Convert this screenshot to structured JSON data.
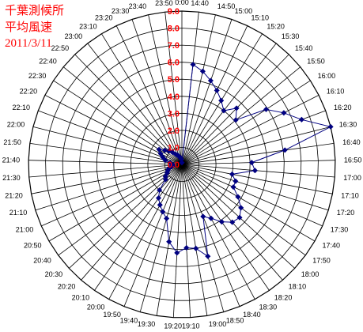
{
  "chart_data": {
    "type": "radar",
    "title_lines": [
      "千葉測候所",
      "平均風速",
      "2011/3/11"
    ],
    "radial_ticks": [
      "0.0",
      "1.0",
      "2.0",
      "3.0",
      "4.0",
      "5.0",
      "6.0",
      "7.0",
      "8.0",
      "9.0"
    ],
    "rmax": 9.0,
    "categories": [
      "0:00",
      "14:40",
      "14:50",
      "15:00",
      "15:10",
      "15:20",
      "15:30",
      "15:40",
      "15:50",
      "16:00",
      "16:10",
      "16:20",
      "16:30",
      "16:40",
      "16:50",
      "17:00",
      "17:10",
      "17:20",
      "17:30",
      "17:40",
      "17:50",
      "18:00",
      "18:10",
      "18:20",
      "18:30",
      "18:40",
      "18:50",
      "19:00",
      "19:10",
      "19:20",
      "19:30",
      "19:40",
      "19:50",
      "20:00",
      "20:10",
      "20:20",
      "20:30",
      "20:40",
      "20:50",
      "21:00",
      "21:10",
      "21:20",
      "21:30",
      "21:40",
      "21:50",
      "22:00",
      "22:10",
      "22:20",
      "22:30",
      "22:40",
      "22:50",
      "23:00",
      "23:10",
      "23:20",
      "23:30",
      "23:40",
      "23:50"
    ],
    "series": [
      {
        "color": "#000080",
        "values": [
          0.1,
          5.9,
          5.6,
          5.2,
          4.8,
          4.4,
          4.0,
          4.6,
          4.1,
          5.9,
          6.7,
          7.5,
          9.0,
          6.1,
          4.1,
          4.3,
          3.0,
          3.3,
          3.3,
          3.8,
          4.3,
          4.6,
          4.5,
          4.1,
          3.6,
          3.3,
          5.6,
          5.0,
          4.9,
          5.2,
          4.6,
          3.3,
          3.0,
          2.7,
          2.4,
          2.0,
          1.3,
          1.2,
          1.0,
          0.9,
          0.8,
          0.6,
          0.5,
          0.6,
          0.7,
          1.0,
          1.2,
          1.4,
          1.6,
          1.3,
          1.1,
          0.9,
          0.7,
          0.6,
          0.5,
          0.4,
          0.3
        ]
      }
    ]
  }
}
